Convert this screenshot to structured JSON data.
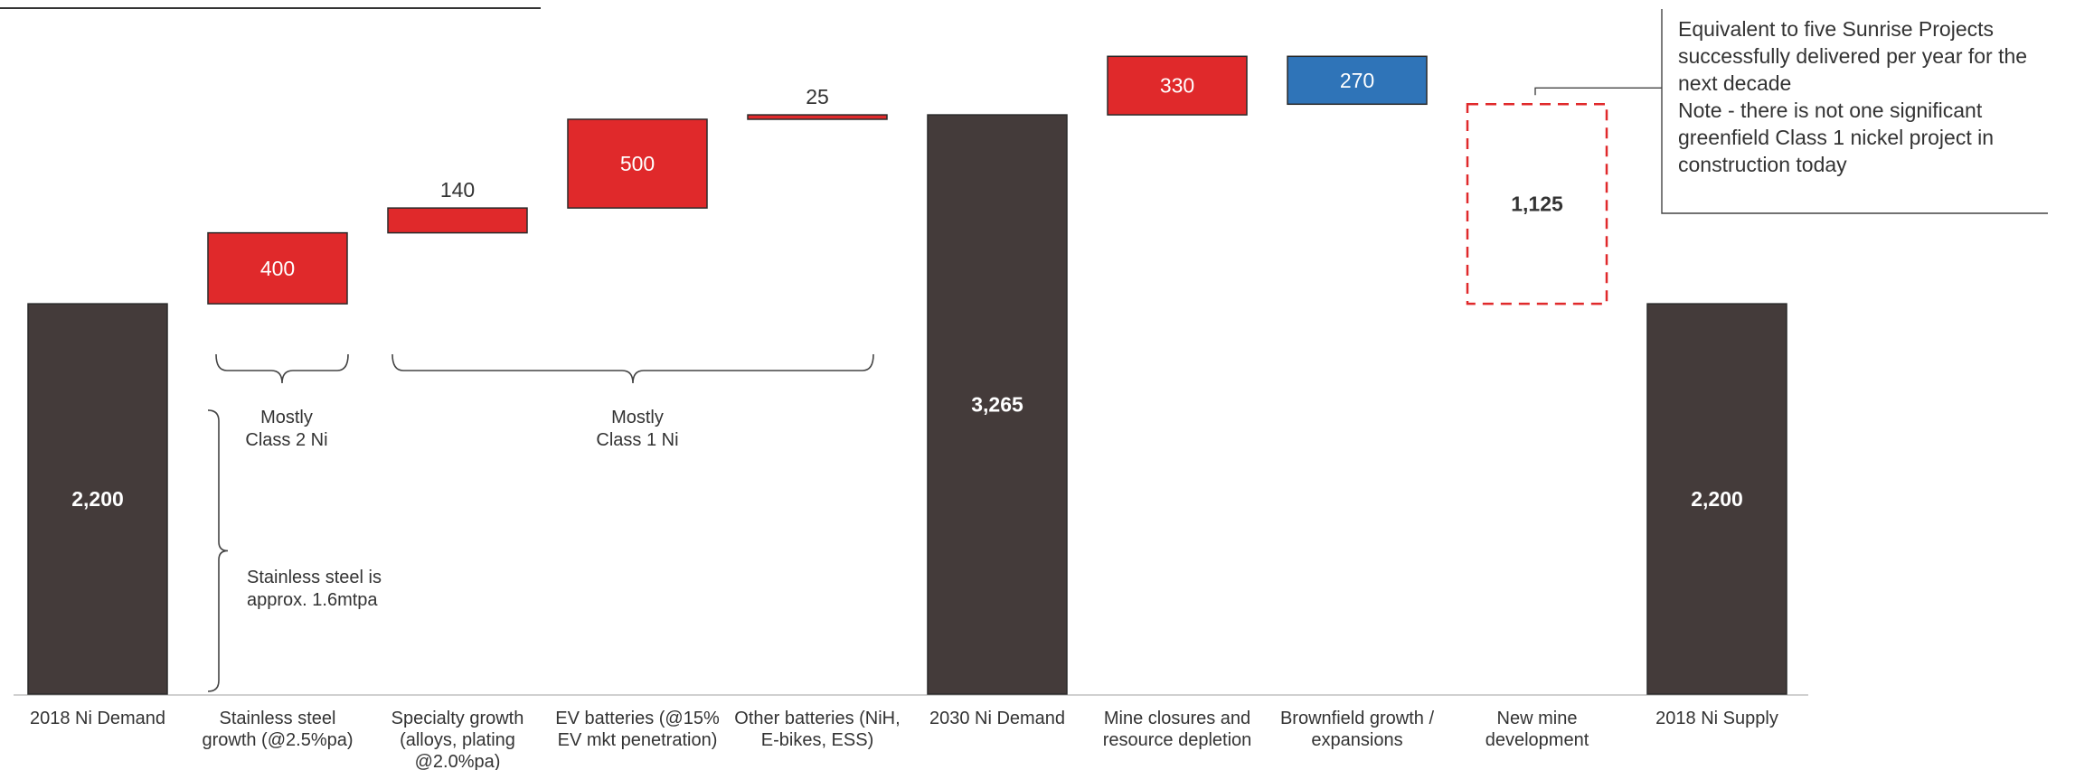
{
  "chart_data": {
    "type": "bar",
    "subtype": "waterfall",
    "title": "",
    "xlabel": "",
    "ylabel": "",
    "ylim": [
      0,
      3800
    ],
    "grid": false,
    "legend": "none",
    "colors": {
      "total": "#443b3a",
      "increase": "#e0292b",
      "brownfield": "#2f74b8",
      "gap_outline": "#e0292b"
    },
    "bars": [
      {
        "category": "2018 Ni Demand",
        "label": "2,200",
        "kind": "total",
        "base": 0,
        "value": 2200
      },
      {
        "category": "Stainless steel growth (@2.5%pa)",
        "label": "400",
        "kind": "increase",
        "base": 2200,
        "value": 400
      },
      {
        "category": "Specialty growth (alloys, plating @2.0%pa)",
        "label": "140",
        "kind": "increase",
        "base": 2600,
        "value": 140
      },
      {
        "category": "EV batteries (@15% EV mkt penetration)",
        "label": "500",
        "kind": "increase",
        "base": 2740,
        "value": 500
      },
      {
        "category": "Other batteries (NiH, E-bikes, ESS)",
        "label": "25",
        "kind": "increase",
        "base": 3240,
        "value": 25
      },
      {
        "category": "2030 Ni Demand",
        "label": "3,265",
        "kind": "total",
        "base": 0,
        "value": 3265
      },
      {
        "category": "Mine closures and resource depletion",
        "label": "330",
        "kind": "increase",
        "base": 3265,
        "value": 330
      },
      {
        "category": "Brownfield growth / expansions",
        "label": "270",
        "kind": "brownfield",
        "base": 3325,
        "value": 270
      },
      {
        "category": "New mine development",
        "label": "1,125",
        "kind": "gap",
        "base": 2200,
        "value": 1125
      },
      {
        "category": "2018 Ni Supply",
        "label": "2,200",
        "kind": "total",
        "base": 0,
        "value": 2200
      }
    ],
    "annotations": {
      "class2": [
        "Mostly",
        "Class 2 Ni"
      ],
      "class1": [
        "Mostly",
        "Class 1 Ni"
      ],
      "stainless": [
        "Stainless steel is",
        "approx. 1.6mtpa"
      ],
      "stainless_value": 1600,
      "callout": [
        "Equivalent to five Sunrise Projects",
        "successfully delivered per year for the",
        "next decade",
        "",
        "Note - there is not one significant",
        "greenfield Class 1 nickel project in",
        "construction today"
      ]
    }
  }
}
